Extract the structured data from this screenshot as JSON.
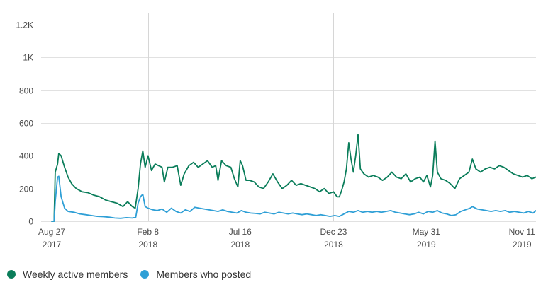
{
  "colors": {
    "weekly": "#0a7d5a",
    "posted": "#2e9fd6"
  },
  "legend": [
    {
      "label": "Weekly active members",
      "color": "#0a7d5a"
    },
    {
      "label": "Members who posted",
      "color": "#2e9fd6"
    }
  ],
  "chart_data": {
    "type": "line",
    "title": "",
    "xlabel": "",
    "ylabel": "",
    "ylim": [
      0,
      1300
    ],
    "y_ticks": [
      {
        "value": 0,
        "label": "0"
      },
      {
        "value": 200,
        "label": "200"
      },
      {
        "value": 400,
        "label": "400"
      },
      {
        "value": 600,
        "label": "600"
      },
      {
        "value": 800,
        "label": "800"
      },
      {
        "value": 1000,
        "label": "1K"
      },
      {
        "value": 1200,
        "label": "1.2K"
      }
    ],
    "x_range": [
      "2017-08-27",
      "2019-12-05"
    ],
    "x_ticks": [
      {
        "date": "2017-08-27",
        "line1": "Aug 27",
        "line2": "2017"
      },
      {
        "date": "2018-02-08",
        "line1": "Feb 8",
        "line2": "2018"
      },
      {
        "date": "2018-07-16",
        "line1": "Jul 16",
        "line2": "2018"
      },
      {
        "date": "2018-12-23",
        "line1": "Dec 23",
        "line2": "2018"
      },
      {
        "date": "2019-05-31",
        "line1": "May 31",
        "line2": "2019"
      },
      {
        "date": "2019-11-11",
        "line1": "Nov 11",
        "line2": "2019"
      }
    ],
    "vertical_gridlines": [
      "2018-02-08",
      "2018-12-23"
    ],
    "grid": true,
    "legend_position": "bottom-left",
    "series": [
      {
        "name": "Weekly active members",
        "color": "#0a7d5a",
        "points": [
          [
            "2017-08-27",
            0
          ],
          [
            "2017-08-31",
            0
          ],
          [
            "2017-09-02",
            300
          ],
          [
            "2017-09-06",
            350
          ],
          [
            "2017-09-08",
            415
          ],
          [
            "2017-09-12",
            400
          ],
          [
            "2017-09-18",
            330
          ],
          [
            "2017-09-24",
            270
          ],
          [
            "2017-09-30",
            230
          ],
          [
            "2017-10-08",
            200
          ],
          [
            "2017-10-18",
            180
          ],
          [
            "2017-10-28",
            175
          ],
          [
            "2017-11-07",
            160
          ],
          [
            "2017-11-17",
            150
          ],
          [
            "2017-11-27",
            130
          ],
          [
            "2017-12-07",
            120
          ],
          [
            "2017-12-17",
            110
          ],
          [
            "2017-12-27",
            90
          ],
          [
            "2018-01-04",
            120
          ],
          [
            "2018-01-12",
            90
          ],
          [
            "2018-01-17",
            80
          ],
          [
            "2018-01-22",
            200
          ],
          [
            "2018-01-26",
            350
          ],
          [
            "2018-01-30",
            430
          ],
          [
            "2018-02-03",
            330
          ],
          [
            "2018-02-08",
            400
          ],
          [
            "2018-02-14",
            310
          ],
          [
            "2018-02-20",
            350
          ],
          [
            "2018-02-26",
            340
          ],
          [
            "2018-03-04",
            330
          ],
          [
            "2018-03-08",
            240
          ],
          [
            "2018-03-14",
            330
          ],
          [
            "2018-03-22",
            330
          ],
          [
            "2018-03-30",
            340
          ],
          [
            "2018-04-05",
            220
          ],
          [
            "2018-04-11",
            290
          ],
          [
            "2018-04-19",
            340
          ],
          [
            "2018-04-27",
            360
          ],
          [
            "2018-05-05",
            330
          ],
          [
            "2018-05-13",
            350
          ],
          [
            "2018-05-21",
            370
          ],
          [
            "2018-05-29",
            330
          ],
          [
            "2018-06-04",
            340
          ],
          [
            "2018-06-08",
            250
          ],
          [
            "2018-06-14",
            370
          ],
          [
            "2018-06-22",
            340
          ],
          [
            "2018-06-30",
            330
          ],
          [
            "2018-07-06",
            260
          ],
          [
            "2018-07-12",
            210
          ],
          [
            "2018-07-16",
            370
          ],
          [
            "2018-07-20",
            340
          ],
          [
            "2018-07-26",
            250
          ],
          [
            "2018-08-01",
            250
          ],
          [
            "2018-08-09",
            240
          ],
          [
            "2018-08-17",
            210
          ],
          [
            "2018-08-25",
            200
          ],
          [
            "2018-09-02",
            240
          ],
          [
            "2018-09-10",
            290
          ],
          [
            "2018-09-18",
            240
          ],
          [
            "2018-09-26",
            200
          ],
          [
            "2018-10-04",
            220
          ],
          [
            "2018-10-12",
            250
          ],
          [
            "2018-10-20",
            220
          ],
          [
            "2018-10-28",
            230
          ],
          [
            "2018-11-05",
            220
          ],
          [
            "2018-11-13",
            210
          ],
          [
            "2018-11-21",
            200
          ],
          [
            "2018-11-29",
            180
          ],
          [
            "2018-12-07",
            200
          ],
          [
            "2018-12-15",
            170
          ],
          [
            "2018-12-23",
            180
          ],
          [
            "2018-12-29",
            150
          ],
          [
            "2019-01-02",
            150
          ],
          [
            "2019-01-06",
            190
          ],
          [
            "2019-01-10",
            240
          ],
          [
            "2019-01-14",
            320
          ],
          [
            "2019-01-18",
            480
          ],
          [
            "2019-01-22",
            380
          ],
          [
            "2019-01-26",
            300
          ],
          [
            "2019-01-30",
            400
          ],
          [
            "2019-02-03",
            530
          ],
          [
            "2019-02-07",
            320
          ],
          [
            "2019-02-13",
            290
          ],
          [
            "2019-02-21",
            270
          ],
          [
            "2019-03-01",
            280
          ],
          [
            "2019-03-09",
            270
          ],
          [
            "2019-03-17",
            250
          ],
          [
            "2019-03-25",
            270
          ],
          [
            "2019-04-02",
            300
          ],
          [
            "2019-04-10",
            270
          ],
          [
            "2019-04-18",
            260
          ],
          [
            "2019-04-26",
            290
          ],
          [
            "2019-05-04",
            240
          ],
          [
            "2019-05-12",
            260
          ],
          [
            "2019-05-20",
            270
          ],
          [
            "2019-05-26",
            240
          ],
          [
            "2019-06-01",
            280
          ],
          [
            "2019-06-07",
            210
          ],
          [
            "2019-06-11",
            280
          ],
          [
            "2019-06-15",
            490
          ],
          [
            "2019-06-19",
            300
          ],
          [
            "2019-06-25",
            260
          ],
          [
            "2019-07-03",
            250
          ],
          [
            "2019-07-11",
            230
          ],
          [
            "2019-07-19",
            200
          ],
          [
            "2019-07-27",
            260
          ],
          [
            "2019-08-04",
            280
          ],
          [
            "2019-08-12",
            300
          ],
          [
            "2019-08-18",
            380
          ],
          [
            "2019-08-24",
            320
          ],
          [
            "2019-09-01",
            300
          ],
          [
            "2019-09-09",
            320
          ],
          [
            "2019-09-17",
            330
          ],
          [
            "2019-09-25",
            320
          ],
          [
            "2019-10-03",
            340
          ],
          [
            "2019-10-11",
            330
          ],
          [
            "2019-10-19",
            310
          ],
          [
            "2019-10-27",
            290
          ],
          [
            "2019-11-04",
            280
          ],
          [
            "2019-11-12",
            270
          ],
          [
            "2019-11-20",
            280
          ],
          [
            "2019-11-28",
            260
          ],
          [
            "2019-12-05",
            270
          ]
        ]
      },
      {
        "name": "Members who posted",
        "color": "#2e9fd6",
        "points": [
          [
            "2017-08-27",
            0
          ],
          [
            "2017-08-31",
            0
          ],
          [
            "2017-09-02",
            120
          ],
          [
            "2017-09-06",
            270
          ],
          [
            "2017-09-08",
            275
          ],
          [
            "2017-09-12",
            150
          ],
          [
            "2017-09-18",
            80
          ],
          [
            "2017-09-24",
            60
          ],
          [
            "2017-10-04",
            55
          ],
          [
            "2017-10-14",
            45
          ],
          [
            "2017-10-24",
            40
          ],
          [
            "2017-11-03",
            35
          ],
          [
            "2017-11-13",
            30
          ],
          [
            "2017-11-23",
            28
          ],
          [
            "2017-12-03",
            25
          ],
          [
            "2017-12-13",
            20
          ],
          [
            "2017-12-23",
            18
          ],
          [
            "2018-01-02",
            22
          ],
          [
            "2018-01-12",
            20
          ],
          [
            "2018-01-18",
            25
          ],
          [
            "2018-01-22",
            110
          ],
          [
            "2018-01-26",
            150
          ],
          [
            "2018-01-30",
            165
          ],
          [
            "2018-02-03",
            90
          ],
          [
            "2018-02-08",
            80
          ],
          [
            "2018-02-16",
            70
          ],
          [
            "2018-02-24",
            65
          ],
          [
            "2018-03-04",
            75
          ],
          [
            "2018-03-12",
            55
          ],
          [
            "2018-03-20",
            80
          ],
          [
            "2018-03-28",
            60
          ],
          [
            "2018-04-05",
            50
          ],
          [
            "2018-04-13",
            70
          ],
          [
            "2018-04-21",
            60
          ],
          [
            "2018-04-29",
            85
          ],
          [
            "2018-05-07",
            80
          ],
          [
            "2018-05-15",
            75
          ],
          [
            "2018-05-23",
            70
          ],
          [
            "2018-05-31",
            65
          ],
          [
            "2018-06-08",
            60
          ],
          [
            "2018-06-16",
            70
          ],
          [
            "2018-06-24",
            60
          ],
          [
            "2018-07-02",
            55
          ],
          [
            "2018-07-10",
            50
          ],
          [
            "2018-07-18",
            65
          ],
          [
            "2018-07-26",
            55
          ],
          [
            "2018-08-03",
            50
          ],
          [
            "2018-08-11",
            48
          ],
          [
            "2018-08-19",
            45
          ],
          [
            "2018-08-27",
            55
          ],
          [
            "2018-09-04",
            50
          ],
          [
            "2018-09-12",
            45
          ],
          [
            "2018-09-20",
            55
          ],
          [
            "2018-09-28",
            50
          ],
          [
            "2018-10-06",
            45
          ],
          [
            "2018-10-14",
            50
          ],
          [
            "2018-10-22",
            45
          ],
          [
            "2018-10-30",
            40
          ],
          [
            "2018-11-07",
            45
          ],
          [
            "2018-11-15",
            40
          ],
          [
            "2018-11-23",
            35
          ],
          [
            "2018-12-01",
            40
          ],
          [
            "2018-12-09",
            35
          ],
          [
            "2018-12-17",
            30
          ],
          [
            "2018-12-25",
            35
          ],
          [
            "2019-01-02",
            30
          ],
          [
            "2019-01-10",
            45
          ],
          [
            "2019-01-18",
            60
          ],
          [
            "2019-01-26",
            55
          ],
          [
            "2019-02-03",
            65
          ],
          [
            "2019-02-11",
            55
          ],
          [
            "2019-02-19",
            60
          ],
          [
            "2019-02-27",
            55
          ],
          [
            "2019-03-07",
            60
          ],
          [
            "2019-03-15",
            55
          ],
          [
            "2019-03-23",
            60
          ],
          [
            "2019-03-31",
            65
          ],
          [
            "2019-04-08",
            55
          ],
          [
            "2019-04-16",
            50
          ],
          [
            "2019-04-24",
            45
          ],
          [
            "2019-05-02",
            40
          ],
          [
            "2019-05-10",
            45
          ],
          [
            "2019-05-18",
            55
          ],
          [
            "2019-05-26",
            45
          ],
          [
            "2019-06-03",
            60
          ],
          [
            "2019-06-11",
            55
          ],
          [
            "2019-06-19",
            65
          ],
          [
            "2019-06-27",
            50
          ],
          [
            "2019-07-05",
            45
          ],
          [
            "2019-07-13",
            35
          ],
          [
            "2019-07-21",
            40
          ],
          [
            "2019-07-29",
            60
          ],
          [
            "2019-08-06",
            70
          ],
          [
            "2019-08-14",
            80
          ],
          [
            "2019-08-18",
            90
          ],
          [
            "2019-08-26",
            75
          ],
          [
            "2019-09-03",
            70
          ],
          [
            "2019-09-11",
            65
          ],
          [
            "2019-09-19",
            60
          ],
          [
            "2019-09-27",
            65
          ],
          [
            "2019-10-05",
            60
          ],
          [
            "2019-10-13",
            65
          ],
          [
            "2019-10-21",
            55
          ],
          [
            "2019-10-29",
            60
          ],
          [
            "2019-11-06",
            55
          ],
          [
            "2019-11-14",
            50
          ],
          [
            "2019-11-22",
            60
          ],
          [
            "2019-11-30",
            50
          ],
          [
            "2019-12-05",
            65
          ]
        ]
      }
    ]
  }
}
